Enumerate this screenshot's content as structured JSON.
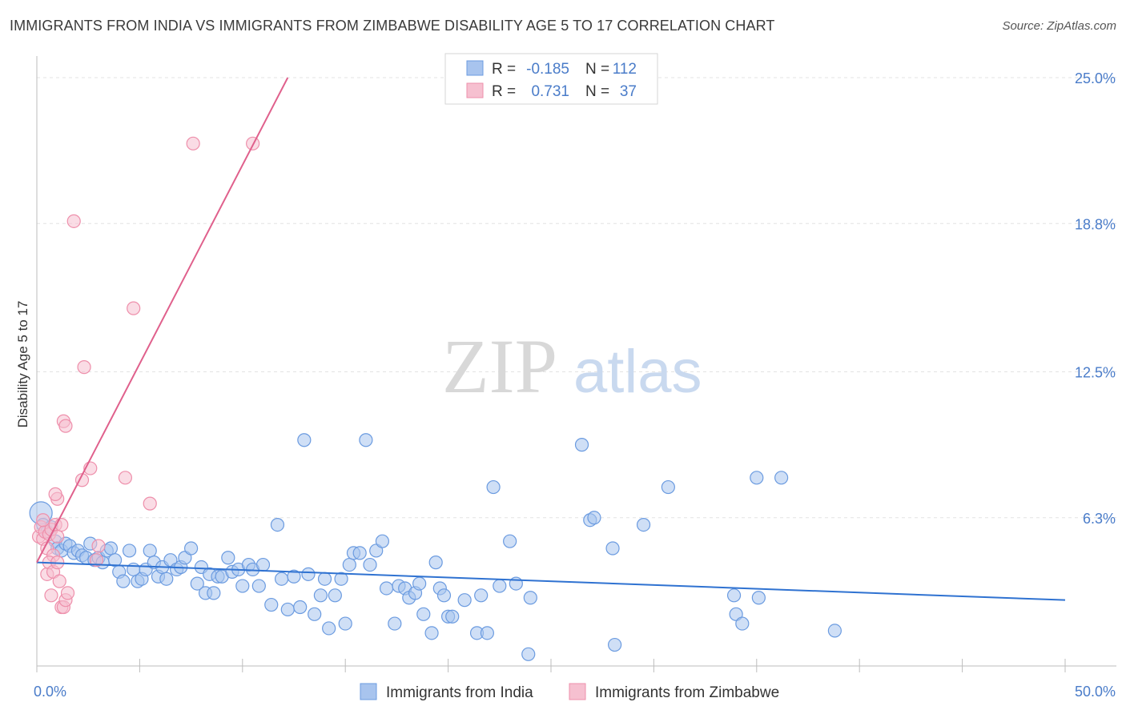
{
  "title": "IMMIGRANTS FROM INDIA VS IMMIGRANTS FROM ZIMBABWE DISABILITY AGE 5 TO 17 CORRELATION CHART",
  "source": "Source: ZipAtlas.com",
  "watermark": {
    "zip": "ZIP",
    "atlas": "atlas"
  },
  "colors": {
    "india_fill": "#a8c4ee",
    "india_stroke": "#6b9be0",
    "india_line": "#2f72d1",
    "zimbabwe_fill": "#f6c0d0",
    "zimbabwe_stroke": "#ee8fab",
    "zimbabwe_line": "#e0608c",
    "label_blue": "#4a7cc9",
    "grid": "#e3e3e3"
  },
  "chart_data": {
    "type": "scatter",
    "title": "IMMIGRANTS FROM INDIA VS IMMIGRANTS FROM ZIMBABWE DISABILITY AGE 5 TO 17 CORRELATION CHART",
    "xlabel": "",
    "ylabel": "Disability Age 5 to 17",
    "xlim": [
      0,
      50
    ],
    "ylim": [
      0,
      25
    ],
    "x_tick_labels": [
      {
        "value": 0,
        "label": "0.0%"
      },
      {
        "value": 50,
        "label": "50.0%"
      }
    ],
    "y_tick_labels": [
      {
        "value": 6.3,
        "label": "6.3%"
      },
      {
        "value": 12.5,
        "label": "12.5%"
      },
      {
        "value": 18.8,
        "label": "18.8%"
      },
      {
        "value": 25.0,
        "label": "25.0%"
      }
    ],
    "x_minor_ticks": [
      0,
      5,
      10,
      15,
      20,
      25,
      30,
      35,
      40,
      45,
      50
    ],
    "legend": {
      "position": "top-center",
      "rows": [
        {
          "r_label": "R =",
          "r_value": "-0.185",
          "n_label": "N =",
          "n_value": "112"
        },
        {
          "r_label": "R =",
          "r_value": "0.731",
          "n_label": "N =",
          "n_value": "37"
        }
      ]
    },
    "bottom_legend": [
      "Immigrants from India",
      "Immigrants from Zimbabwe"
    ],
    "series": [
      {
        "name": "Immigrants from India",
        "trend": {
          "x0": 0,
          "y0": 4.4,
          "x1": 50,
          "y1": 2.8
        },
        "points": [
          [
            0.2,
            6.5
          ],
          [
            0.3,
            6.0
          ],
          [
            0.5,
            5.7
          ],
          [
            0.7,
            5.9
          ],
          [
            0.9,
            5.3
          ],
          [
            1.0,
            5.0
          ],
          [
            1.2,
            4.9
          ],
          [
            1.4,
            5.2
          ],
          [
            1.6,
            5.1
          ],
          [
            1.8,
            4.8
          ],
          [
            2.0,
            4.9
          ],
          [
            2.2,
            4.7
          ],
          [
            2.4,
            4.6
          ],
          [
            2.6,
            5.2
          ],
          [
            2.8,
            4.5
          ],
          [
            3.0,
            4.6
          ],
          [
            3.2,
            4.4
          ],
          [
            3.4,
            4.9
          ],
          [
            3.6,
            5.0
          ],
          [
            3.8,
            4.5
          ],
          [
            4.0,
            4.0
          ],
          [
            4.2,
            3.6
          ],
          [
            4.5,
            4.9
          ],
          [
            4.7,
            4.1
          ],
          [
            4.9,
            3.6
          ],
          [
            5.1,
            3.7
          ],
          [
            5.3,
            4.1
          ],
          [
            5.5,
            4.9
          ],
          [
            5.7,
            4.4
          ],
          [
            5.9,
            3.8
          ],
          [
            6.1,
            4.2
          ],
          [
            6.3,
            3.7
          ],
          [
            6.5,
            4.5
          ],
          [
            6.8,
            4.1
          ],
          [
            7.0,
            4.2
          ],
          [
            7.2,
            4.6
          ],
          [
            7.5,
            5.0
          ],
          [
            7.8,
            3.5
          ],
          [
            8.0,
            4.2
          ],
          [
            8.2,
            3.1
          ],
          [
            8.4,
            3.9
          ],
          [
            8.6,
            3.1
          ],
          [
            8.8,
            3.8
          ],
          [
            9.0,
            3.8
          ],
          [
            9.3,
            4.6
          ],
          [
            9.5,
            4.0
          ],
          [
            9.8,
            4.1
          ],
          [
            10.0,
            3.4
          ],
          [
            10.3,
            4.3
          ],
          [
            10.5,
            4.1
          ],
          [
            10.8,
            3.4
          ],
          [
            11.0,
            4.3
          ],
          [
            11.4,
            2.6
          ],
          [
            11.7,
            6.0
          ],
          [
            11.9,
            3.7
          ],
          [
            12.2,
            2.4
          ],
          [
            12.5,
            3.8
          ],
          [
            12.8,
            2.5
          ],
          [
            13.0,
            9.6
          ],
          [
            13.2,
            3.9
          ],
          [
            13.5,
            2.2
          ],
          [
            13.8,
            3.0
          ],
          [
            14.0,
            3.7
          ],
          [
            14.2,
            1.6
          ],
          [
            14.5,
            3.0
          ],
          [
            14.8,
            3.7
          ],
          [
            15.0,
            1.8
          ],
          [
            15.2,
            4.3
          ],
          [
            15.4,
            4.8
          ],
          [
            15.7,
            4.8
          ],
          [
            16.0,
            9.6
          ],
          [
            16.2,
            4.3
          ],
          [
            16.5,
            4.9
          ],
          [
            16.8,
            5.3
          ],
          [
            17.0,
            3.3
          ],
          [
            17.4,
            1.8
          ],
          [
            17.6,
            3.4
          ],
          [
            17.9,
            3.3
          ],
          [
            18.1,
            2.9
          ],
          [
            18.4,
            3.1
          ],
          [
            18.6,
            3.5
          ],
          [
            18.8,
            2.2
          ],
          [
            19.2,
            1.4
          ],
          [
            19.4,
            4.4
          ],
          [
            19.6,
            3.3
          ],
          [
            19.8,
            3.0
          ],
          [
            20.0,
            2.1
          ],
          [
            20.2,
            2.1
          ],
          [
            20.8,
            2.8
          ],
          [
            21.4,
            1.4
          ],
          [
            21.6,
            3.0
          ],
          [
            21.9,
            1.4
          ],
          [
            22.2,
            7.6
          ],
          [
            22.5,
            3.4
          ],
          [
            23.0,
            5.3
          ],
          [
            23.3,
            3.5
          ],
          [
            24.0,
            2.9
          ],
          [
            23.9,
            0.5
          ],
          [
            26.5,
            9.4
          ],
          [
            26.9,
            6.2
          ],
          [
            27.1,
            6.3
          ],
          [
            28.0,
            5.0
          ],
          [
            28.1,
            0.9
          ],
          [
            29.5,
            6.0
          ],
          [
            30.7,
            7.6
          ],
          [
            33.9,
            3.0
          ],
          [
            34.0,
            2.2
          ],
          [
            34.3,
            1.8
          ],
          [
            35.0,
            8.0
          ],
          [
            35.1,
            2.9
          ],
          [
            38.8,
            1.5
          ],
          [
            36.2,
            8.0
          ]
        ]
      },
      {
        "name": "Immigrants from Zimbabwe",
        "trend": {
          "x0": 0.0,
          "y0": 4.4,
          "x1": 12.2,
          "y1": 25.0
        },
        "points": [
          [
            0.1,
            5.5
          ],
          [
            0.2,
            5.9
          ],
          [
            0.3,
            5.4
          ],
          [
            0.4,
            5.7
          ],
          [
            0.5,
            5.0
          ],
          [
            0.6,
            5.6
          ],
          [
            0.7,
            5.8
          ],
          [
            0.8,
            4.7
          ],
          [
            0.9,
            6.0
          ],
          [
            1.0,
            5.5
          ],
          [
            0.5,
            3.9
          ],
          [
            0.6,
            4.4
          ],
          [
            0.7,
            3.0
          ],
          [
            0.8,
            4.0
          ],
          [
            1.0,
            4.4
          ],
          [
            1.1,
            3.6
          ],
          [
            1.2,
            2.5
          ],
          [
            1.3,
            2.5
          ],
          [
            1.4,
            2.8
          ],
          [
            1.5,
            3.1
          ],
          [
            1.0,
            7.1
          ],
          [
            1.3,
            10.4
          ],
          [
            1.4,
            10.2
          ],
          [
            2.2,
            7.9
          ],
          [
            2.6,
            8.4
          ],
          [
            2.3,
            12.7
          ],
          [
            1.8,
            18.9
          ],
          [
            2.9,
            4.5
          ],
          [
            3.0,
            5.1
          ],
          [
            4.3,
            8.0
          ],
          [
            4.7,
            15.2
          ],
          [
            5.5,
            6.9
          ],
          [
            7.6,
            22.2
          ],
          [
            10.5,
            22.2
          ],
          [
            0.9,
            7.3
          ],
          [
            1.2,
            6.0
          ],
          [
            0.3,
            6.2
          ]
        ]
      }
    ]
  }
}
